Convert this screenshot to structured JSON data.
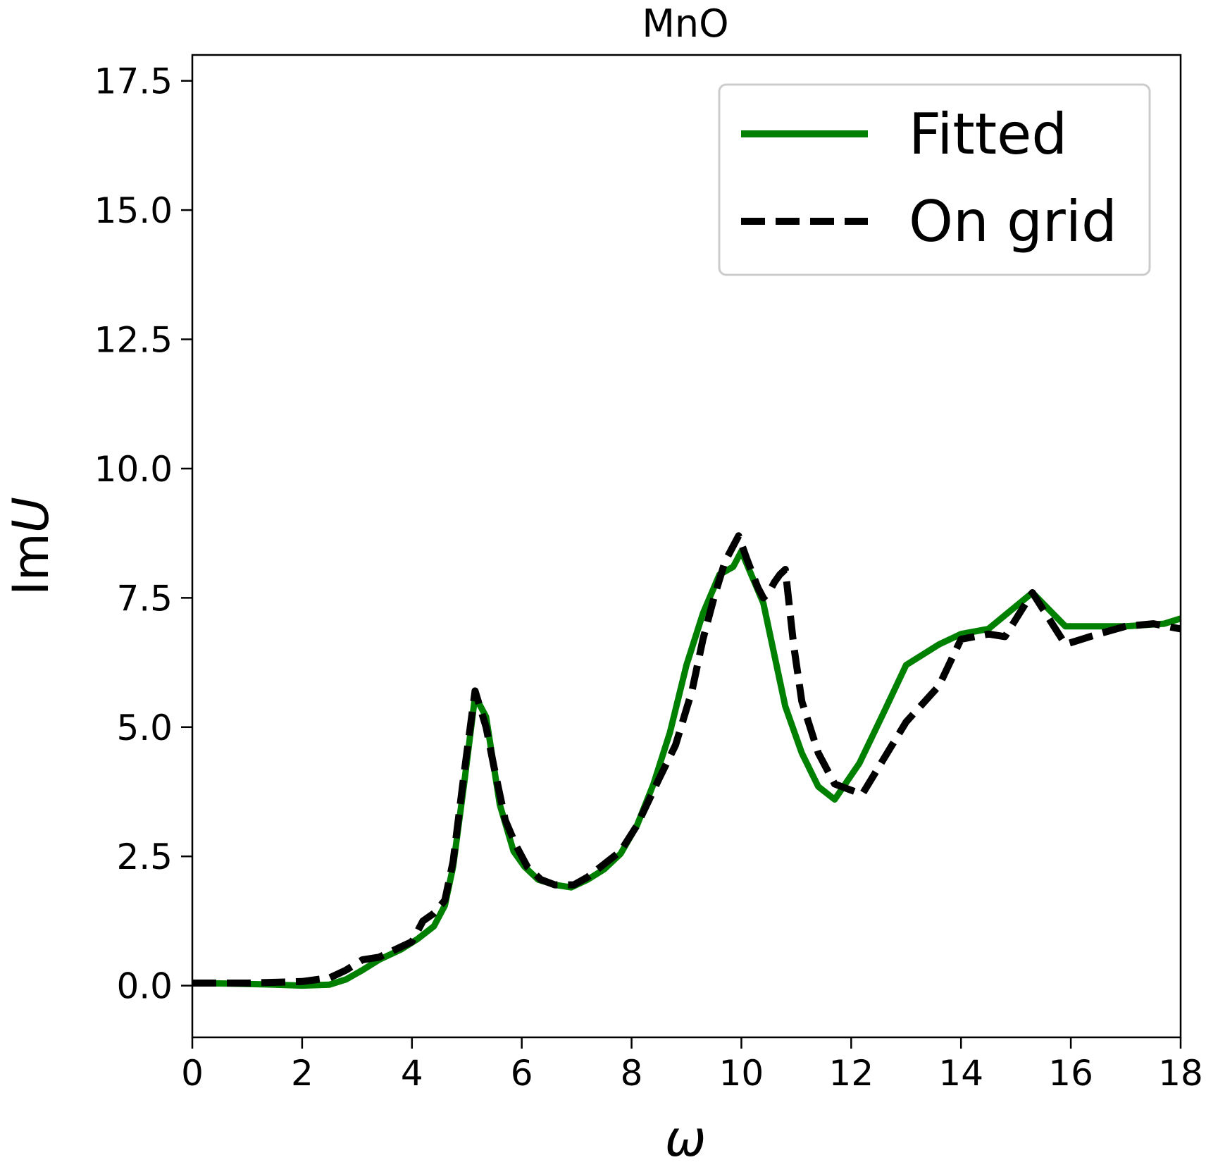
{
  "chart_data": {
    "type": "line",
    "title": "MnO",
    "xlabel": "ω",
    "ylabel_prefix": "Im",
    "ylabel_var": "U",
    "xlim": [
      0,
      18
    ],
    "ylim": [
      -1.0,
      18.0
    ],
    "x_ticks": [
      0,
      2,
      4,
      6,
      8,
      10,
      12,
      14,
      16,
      18
    ],
    "x_tick_labels": [
      "0",
      "2",
      "4",
      "6",
      "8",
      "10",
      "12",
      "14",
      "16",
      "18"
    ],
    "y_ticks": [
      0.0,
      2.5,
      5.0,
      7.5,
      10.0,
      12.5,
      15.0,
      17.5
    ],
    "y_tick_labels": [
      "0.0",
      "2.5",
      "5.0",
      "7.5",
      "10.0",
      "12.5",
      "15.0",
      "17.5"
    ],
    "grid": false,
    "legend_position": "top-right",
    "series": [
      {
        "name": "Fitted",
        "color": "#008000",
        "style": "solid",
        "x": [
          0,
          0.7,
          1.5,
          2.0,
          2.5,
          2.8,
          3.1,
          3.4,
          3.8,
          4.1,
          4.4,
          4.6,
          4.75,
          4.95,
          5.15,
          5.35,
          5.6,
          5.85,
          6.05,
          6.3,
          6.6,
          6.9,
          7.2,
          7.5,
          7.8,
          8.1,
          8.4,
          8.7,
          9.0,
          9.3,
          9.6,
          9.85,
          10.0,
          10.4,
          10.8,
          11.1,
          11.4,
          11.7,
          12.15,
          12.6,
          13.0,
          13.6,
          14.0,
          14.5,
          15.3,
          15.9,
          17.0,
          17.7,
          18.0
        ],
        "y": [
          0.05,
          0.04,
          0.02,
          0.0,
          0.02,
          0.12,
          0.3,
          0.5,
          0.7,
          0.9,
          1.15,
          1.55,
          2.3,
          3.9,
          5.6,
          5.2,
          3.5,
          2.6,
          2.3,
          2.05,
          1.95,
          1.9,
          2.05,
          2.25,
          2.55,
          3.1,
          3.9,
          4.9,
          6.2,
          7.2,
          7.95,
          8.1,
          8.4,
          7.4,
          5.4,
          4.5,
          3.85,
          3.6,
          4.3,
          5.3,
          6.2,
          6.6,
          6.8,
          6.9,
          7.6,
          6.95,
          6.95,
          7.0,
          7.1
        ]
      },
      {
        "name": "On grid",
        "color": "#000000",
        "style": "dashed",
        "x": [
          0,
          1.0,
          2.0,
          2.5,
          2.8,
          3.1,
          3.4,
          3.7,
          4.0,
          4.2,
          4.4,
          4.6,
          4.75,
          4.95,
          5.15,
          5.35,
          5.5,
          5.7,
          5.9,
          6.1,
          6.35,
          6.6,
          6.95,
          7.2,
          7.5,
          7.8,
          8.1,
          8.5,
          8.8,
          9.1,
          9.3,
          9.5,
          9.7,
          9.95,
          10.1,
          10.3,
          10.4,
          10.5,
          10.6,
          10.7,
          10.8,
          10.95,
          11.1,
          11.4,
          11.7,
          12.2,
          12.6,
          13.0,
          13.6,
          14.0,
          14.5,
          14.8,
          15.3,
          15.9,
          16.5,
          17.0,
          17.5,
          18.0
        ],
        "y": [
          0.05,
          0.05,
          0.08,
          0.15,
          0.3,
          0.5,
          0.55,
          0.7,
          0.85,
          1.25,
          1.4,
          1.65,
          2.4,
          4.1,
          5.7,
          5.0,
          4.2,
          3.2,
          2.7,
          2.3,
          2.05,
          1.95,
          1.95,
          2.1,
          2.35,
          2.6,
          3.1,
          4.0,
          4.65,
          5.7,
          6.7,
          7.5,
          8.2,
          8.7,
          8.25,
          7.7,
          7.5,
          7.6,
          7.8,
          7.95,
          8.05,
          6.6,
          5.5,
          4.5,
          3.9,
          3.7,
          4.4,
          5.1,
          5.8,
          6.7,
          6.8,
          6.75,
          7.6,
          6.6,
          6.8,
          6.95,
          7.0,
          6.9
        ]
      }
    ]
  }
}
